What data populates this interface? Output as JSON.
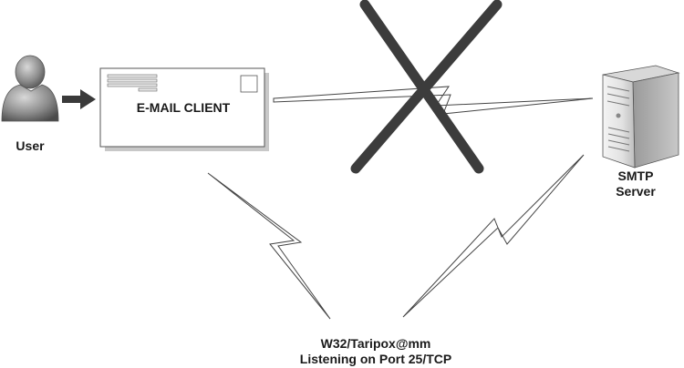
{
  "user": {
    "label": "User"
  },
  "email_client": {
    "label": "E-MAIL CLIENT"
  },
  "smtp_server": {
    "label_line1": "SMTP",
    "label_line2": "Server"
  },
  "malware": {
    "label_line1": "W32/Taripox@mm",
    "label_line2": "Listening on Port 25/TCP"
  },
  "blocked_path": {
    "icon": "cross-icon",
    "color": "#3c3c3c"
  }
}
